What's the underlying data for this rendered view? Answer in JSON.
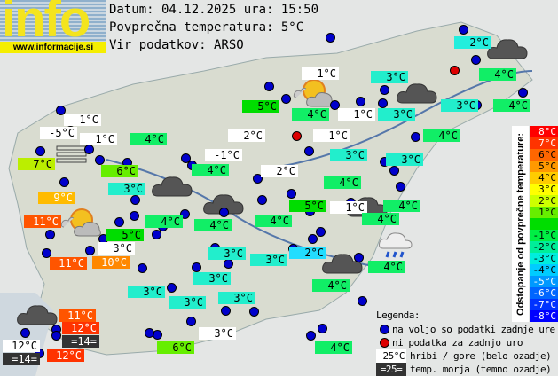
{
  "header": {
    "logo_text": "info",
    "logo_url": "www.informacije.si",
    "date_line": "Datum: 04.12.2025 ura: 15:50",
    "avg_line": "Povprečna temperatura: 5°C",
    "source_line": "Vir podatkov: ARSO"
  },
  "colors": {
    "station_ok": "#0000cc",
    "station_missing": "#dd0000",
    "mountain_bg": "#ffffff",
    "sea_bg": "#333333"
  },
  "labels": [
    {
      "t": "2°C",
      "c": "#22eedd"
    },
    {
      "t": "1°C",
      "c": "#ffffff"
    },
    {
      "t": "3°C",
      "c": "#22eecc"
    },
    {
      "t": "4°C",
      "c": "#11ee66"
    },
    {
      "t": "5°C",
      "c": "#00dd00"
    },
    {
      "t": "4°C",
      "c": "#11ee66"
    },
    {
      "t": "1°C",
      "c": "#ffffff"
    },
    {
      "t": "3°C",
      "c": "#22eecc"
    },
    {
      "t": "3°C",
      "c": "#22eecc"
    },
    {
      "t": "4°C",
      "c": "#11ee66"
    },
    {
      "t": "1°C",
      "c": "#ffffff"
    },
    {
      "t": "-5°C",
      "c": "#ffffff"
    },
    {
      "t": "1°C",
      "c": "#ffffff"
    },
    {
      "t": "4°C",
      "c": "#11ee66"
    },
    {
      "t": "2°C",
      "c": "#ffffff"
    },
    {
      "t": "1°C",
      "c": "#ffffff"
    },
    {
      "t": "4°C",
      "c": "#11ee66"
    },
    {
      "t": "7°C",
      "c": "#bbee00"
    },
    {
      "t": "-1°C",
      "c": "#ffffff"
    },
    {
      "t": "3°C",
      "c": "#22eecc"
    },
    {
      "t": "3°C",
      "c": "#22eecc"
    },
    {
      "t": "6°C",
      "c": "#66ee00"
    },
    {
      "t": "4°C",
      "c": "#11ee66"
    },
    {
      "t": "2°C",
      "c": "#ffffff"
    },
    {
      "t": "4°C",
      "c": "#11ee66"
    },
    {
      "t": "3°C",
      "c": "#22eecc"
    },
    {
      "t": "9°C",
      "c": "#ffbb00"
    },
    {
      "t": "5°C",
      "c": "#00dd00"
    },
    {
      "t": "-1°C",
      "c": "#ffffff"
    },
    {
      "t": "4°C",
      "c": "#11ee66"
    },
    {
      "t": "4°C",
      "c": "#11ee66"
    },
    {
      "t": "4°C",
      "c": "#11ee66"
    },
    {
      "t": "4°C",
      "c": "#11ee66"
    },
    {
      "t": "11°C",
      "c": "#ff5500"
    },
    {
      "t": "5°C",
      "c": "#00dd00"
    },
    {
      "t": "4°C",
      "c": "#11ee66"
    },
    {
      "t": "3°C",
      "c": "#ffffff"
    },
    {
      "t": "2°C",
      "c": "#22ddff"
    },
    {
      "t": "3°C",
      "c": "#22eecc"
    },
    {
      "t": "3°C",
      "c": "#22eecc"
    },
    {
      "t": "11°C",
      "c": "#ff5500"
    },
    {
      "t": "10°C",
      "c": "#ff8800"
    },
    {
      "t": "4°C",
      "c": "#11ee66"
    },
    {
      "t": "3°C",
      "c": "#22eecc"
    },
    {
      "t": "4°C",
      "c": "#11ee66"
    },
    {
      "t": "3°C",
      "c": "#22eecc"
    },
    {
      "t": "3°C",
      "c": "#22eecc"
    },
    {
      "t": "3°C",
      "c": "#22eecc"
    },
    {
      "t": "11°C",
      "c": "#ff5500"
    },
    {
      "t": "12°C",
      "c": "#ff3300"
    },
    {
      "t": "=14=",
      "c": "#333333"
    },
    {
      "t": "12°C",
      "c": "#ffffff"
    },
    {
      "t": "=14=",
      "c": "#333333"
    },
    {
      "t": "12°C",
      "c": "#ff3300"
    },
    {
      "t": "6°C",
      "c": "#66ee00"
    },
    {
      "t": "3°C",
      "c": "#ffffff"
    },
    {
      "t": "4°C",
      "c": "#11ee66"
    }
  ],
  "scale": {
    "title": "Odstopanje od povprečne temperature:",
    "items": [
      {
        "t": "8°C",
        "c": "#ff0000"
      },
      {
        "t": "7°C",
        "c": "#ff3300"
      },
      {
        "t": "6°C",
        "c": "#ff6600"
      },
      {
        "t": "5°C",
        "c": "#ff9900"
      },
      {
        "t": "4°C",
        "c": "#ffcc00"
      },
      {
        "t": "3°C",
        "c": "#ffff00"
      },
      {
        "t": "2°C",
        "c": "#ccff00"
      },
      {
        "t": "1°C",
        "c": "#66ee00"
      },
      {
        "t": "",
        "c": "#00dd00"
      },
      {
        "t": "-1°C",
        "c": "#00ee44"
      },
      {
        "t": "-2°C",
        "c": "#00ee99"
      },
      {
        "t": "-3°C",
        "c": "#00eedd"
      },
      {
        "t": "-4°C",
        "c": "#00ccff"
      },
      {
        "t": "-5°C",
        "c": "#0099ff"
      },
      {
        "t": "-6°C",
        "c": "#0066ff"
      },
      {
        "t": "-7°C",
        "c": "#0033ff"
      },
      {
        "t": "-8°C",
        "c": "#0000ff"
      }
    ]
  },
  "legend": {
    "title": "Legenda:",
    "ok": "na voljo so podatki zadnje ure",
    "missing": "ni podatka za zadnjo uro",
    "mountain_sample": "25°C",
    "mountain_text": "hribi / gore (belo ozadje)",
    "sea_sample": "=25=",
    "sea_text": "temp. morja (temno ozadje)"
  }
}
